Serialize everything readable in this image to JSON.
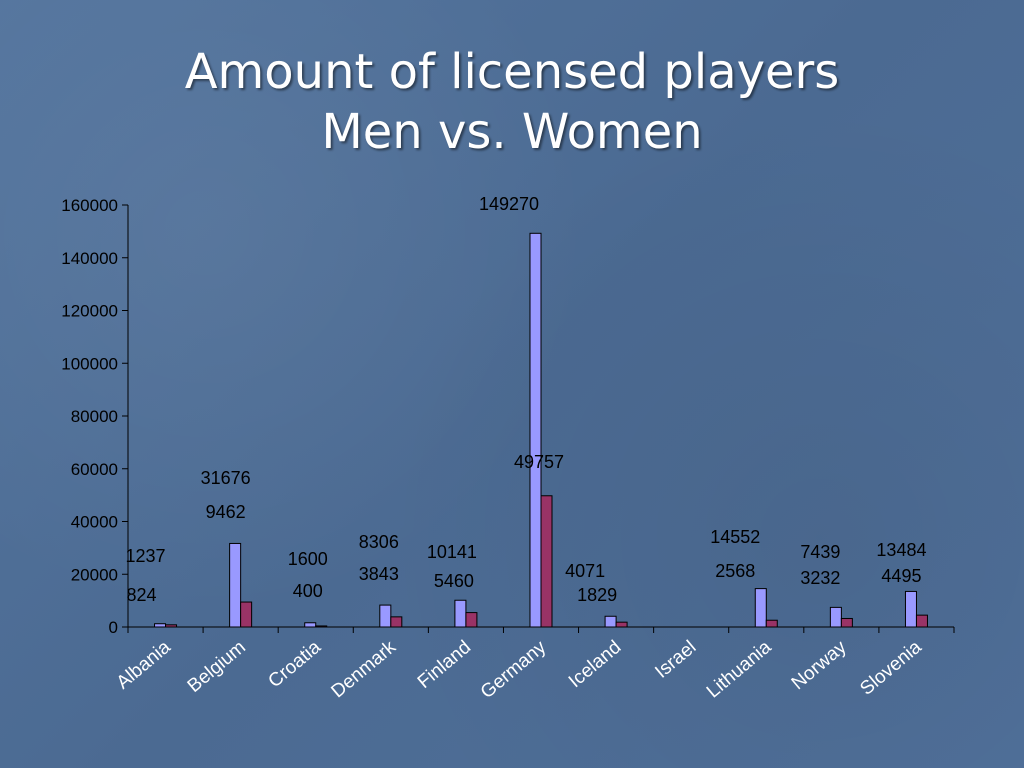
{
  "chart_data": {
    "type": "bar",
    "title_line1": "Amount of licensed players",
    "title_line2": "Men vs. Women",
    "categories": [
      "Albania",
      "Belgium",
      "Croatia",
      "Denmark",
      "Finland",
      "Germany",
      "Iceland",
      "Israel",
      "Lithuania",
      "Norway",
      "Slovenia"
    ],
    "series": [
      {
        "values": [
          1237,
          31676,
          1600,
          8306,
          10141,
          149270,
          4071,
          null,
          14552,
          7439,
          13484
        ],
        "color": "#9999ff"
      },
      {
        "values": [
          824,
          9462,
          400,
          3843,
          5460,
          49757,
          1829,
          null,
          2568,
          3232,
          4495
        ],
        "color": "#993366"
      }
    ],
    "ylim": [
      0,
      160000
    ],
    "yticks": [
      "0",
      "20000",
      "40000",
      "60000",
      "80000",
      "100000",
      "120000",
      "140000",
      "160000"
    ],
    "xlabel": "",
    "ylabel": "",
    "grid": false
  }
}
